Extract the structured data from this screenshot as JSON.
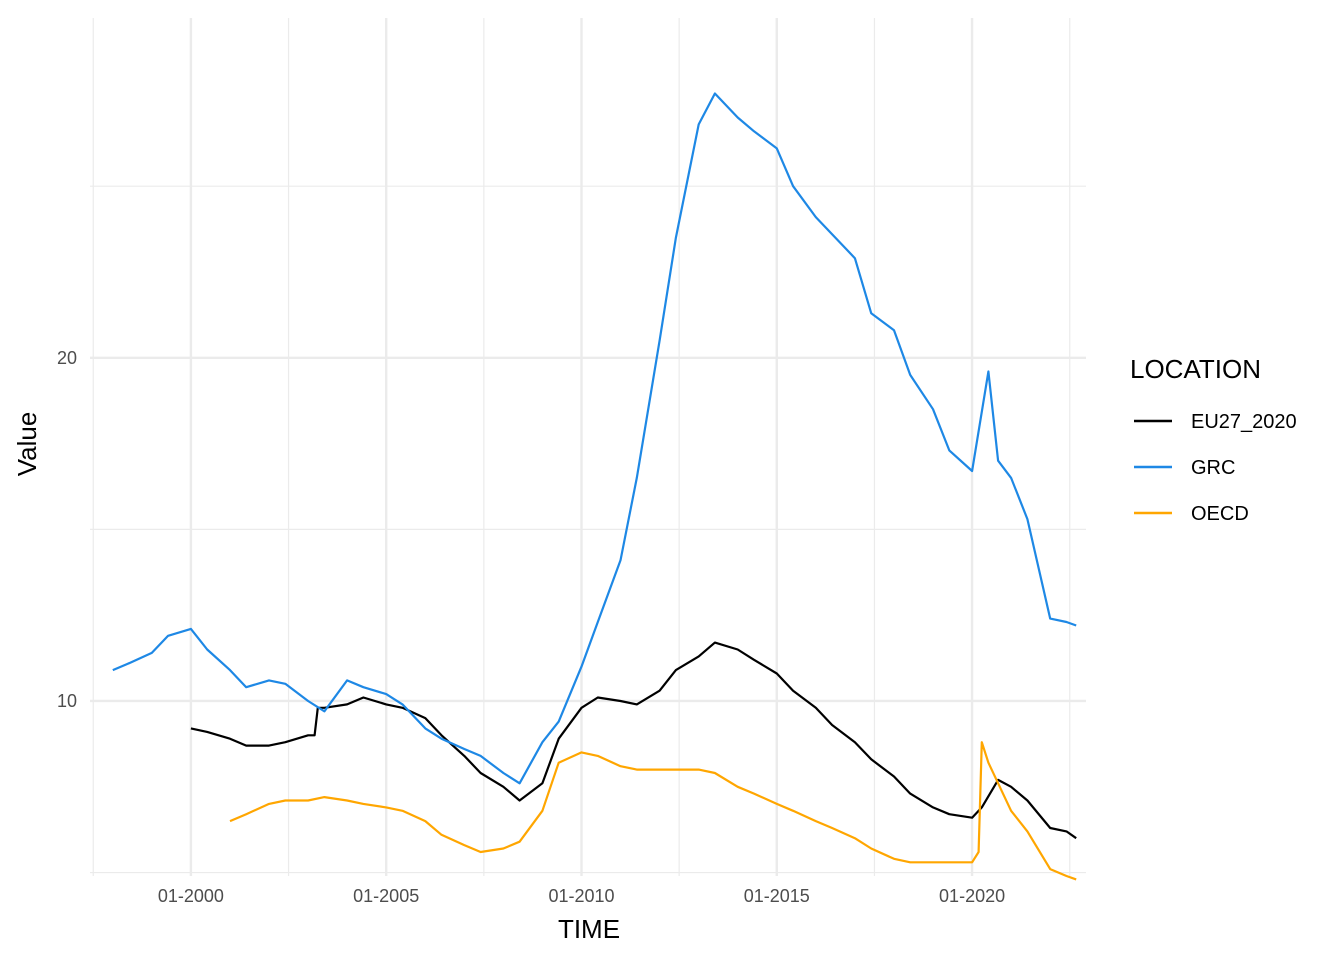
{
  "chart_data": {
    "type": "line",
    "title": "",
    "xlabel": "TIME",
    "ylabel": "Value",
    "xlim": [
      "1997-06",
      "2022-12"
    ],
    "ylim": [
      4.9,
      29.9
    ],
    "x_ticks": [
      "01-2000",
      "01-2005",
      "01-2010",
      "01-2015",
      "01-2020"
    ],
    "y_ticks": [
      10,
      20
    ],
    "grid": true,
    "legend": {
      "title": "LOCATION",
      "position": "right"
    },
    "series": [
      {
        "name": "EU27_2020",
        "color": "#000000",
        "points": [
          [
            "2000-01",
            9.2
          ],
          [
            "2000-06",
            9.1
          ],
          [
            "2001-01",
            8.9
          ],
          [
            "2001-06",
            8.7
          ],
          [
            "2002-01",
            8.7
          ],
          [
            "2002-06",
            8.8
          ],
          [
            "2003-01",
            9.0
          ],
          [
            "2003-03",
            9.0
          ],
          [
            "2003-04",
            9.8
          ],
          [
            "2003-06",
            9.8
          ],
          [
            "2004-01",
            9.9
          ],
          [
            "2004-06",
            10.1
          ],
          [
            "2005-01",
            9.9
          ],
          [
            "2005-06",
            9.8
          ],
          [
            "2006-01",
            9.5
          ],
          [
            "2006-06",
            9.0
          ],
          [
            "2007-01",
            8.4
          ],
          [
            "2007-06",
            7.9
          ],
          [
            "2008-01",
            7.5
          ],
          [
            "2008-06",
            7.1
          ],
          [
            "2009-01",
            7.6
          ],
          [
            "2009-06",
            8.9
          ],
          [
            "2010-01",
            9.8
          ],
          [
            "2010-06",
            10.1
          ],
          [
            "2011-01",
            10.0
          ],
          [
            "2011-06",
            9.9
          ],
          [
            "2012-01",
            10.3
          ],
          [
            "2012-06",
            10.9
          ],
          [
            "2013-01",
            11.3
          ],
          [
            "2013-06",
            11.7
          ],
          [
            "2014-01",
            11.5
          ],
          [
            "2014-06",
            11.2
          ],
          [
            "2015-01",
            10.8
          ],
          [
            "2015-06",
            10.3
          ],
          [
            "2016-01",
            9.8
          ],
          [
            "2016-06",
            9.3
          ],
          [
            "2017-01",
            8.8
          ],
          [
            "2017-06",
            8.3
          ],
          [
            "2018-01",
            7.8
          ],
          [
            "2018-06",
            7.3
          ],
          [
            "2019-01",
            6.9
          ],
          [
            "2019-06",
            6.7
          ],
          [
            "2020-01",
            6.6
          ],
          [
            "2020-04",
            6.9
          ],
          [
            "2020-09",
            7.7
          ],
          [
            "2021-01",
            7.5
          ],
          [
            "2021-06",
            7.1
          ],
          [
            "2022-01",
            6.3
          ],
          [
            "2022-06",
            6.2
          ],
          [
            "2022-09",
            6.0
          ]
        ]
      },
      {
        "name": "GRC",
        "color": "#1e88e5",
        "points": [
          [
            "1998-01",
            10.9
          ],
          [
            "1998-06",
            11.1
          ],
          [
            "1999-01",
            11.4
          ],
          [
            "1999-06",
            11.9
          ],
          [
            "2000-01",
            12.1
          ],
          [
            "2000-06",
            11.5
          ],
          [
            "2001-01",
            10.9
          ],
          [
            "2001-06",
            10.4
          ],
          [
            "2002-01",
            10.6
          ],
          [
            "2002-06",
            10.5
          ],
          [
            "2003-01",
            10.0
          ],
          [
            "2003-06",
            9.7
          ],
          [
            "2004-01",
            10.6
          ],
          [
            "2004-06",
            10.4
          ],
          [
            "2005-01",
            10.2
          ],
          [
            "2005-06",
            9.9
          ],
          [
            "2006-01",
            9.2
          ],
          [
            "2006-06",
            8.9
          ],
          [
            "2007-01",
            8.6
          ],
          [
            "2007-06",
            8.4
          ],
          [
            "2008-01",
            7.9
          ],
          [
            "2008-06",
            7.6
          ],
          [
            "2009-01",
            8.8
          ],
          [
            "2009-06",
            9.4
          ],
          [
            "2010-01",
            11.0
          ],
          [
            "2010-06",
            12.3
          ],
          [
            "2011-01",
            14.1
          ],
          [
            "2011-06",
            16.5
          ],
          [
            "2012-01",
            20.5
          ],
          [
            "2012-06",
            23.5
          ],
          [
            "2013-01",
            26.8
          ],
          [
            "2013-06",
            27.7
          ],
          [
            "2014-01",
            27.0
          ],
          [
            "2014-06",
            26.6
          ],
          [
            "2015-01",
            26.1
          ],
          [
            "2015-06",
            25.0
          ],
          [
            "2016-01",
            24.1
          ],
          [
            "2016-06",
            23.6
          ],
          [
            "2017-01",
            22.9
          ],
          [
            "2017-06",
            21.3
          ],
          [
            "2018-01",
            20.8
          ],
          [
            "2018-06",
            19.5
          ],
          [
            "2019-01",
            18.5
          ],
          [
            "2019-06",
            17.3
          ],
          [
            "2020-01",
            16.7
          ],
          [
            "2020-06",
            19.6
          ],
          [
            "2020-09",
            17.0
          ],
          [
            "2021-01",
            16.5
          ],
          [
            "2021-06",
            15.3
          ],
          [
            "2022-01",
            12.4
          ],
          [
            "2022-06",
            12.3
          ],
          [
            "2022-09",
            12.2
          ]
        ]
      },
      {
        "name": "OECD",
        "color": "#ffa600",
        "points": [
          [
            "2001-01",
            6.5
          ],
          [
            "2001-06",
            6.7
          ],
          [
            "2002-01",
            7.0
          ],
          [
            "2002-06",
            7.1
          ],
          [
            "2003-01",
            7.1
          ],
          [
            "2003-06",
            7.2
          ],
          [
            "2004-01",
            7.1
          ],
          [
            "2004-06",
            7.0
          ],
          [
            "2005-01",
            6.9
          ],
          [
            "2005-06",
            6.8
          ],
          [
            "2006-01",
            6.5
          ],
          [
            "2006-06",
            6.1
          ],
          [
            "2007-01",
            5.8
          ],
          [
            "2007-06",
            5.6
          ],
          [
            "2008-01",
            5.7
          ],
          [
            "2008-06",
            5.9
          ],
          [
            "2009-01",
            6.8
          ],
          [
            "2009-06",
            8.2
          ],
          [
            "2010-01",
            8.5
          ],
          [
            "2010-06",
            8.4
          ],
          [
            "2011-01",
            8.1
          ],
          [
            "2011-06",
            8.0
          ],
          [
            "2012-01",
            8.0
          ],
          [
            "2012-06",
            8.0
          ],
          [
            "2013-01",
            8.0
          ],
          [
            "2013-06",
            7.9
          ],
          [
            "2014-01",
            7.5
          ],
          [
            "2014-06",
            7.3
          ],
          [
            "2015-01",
            7.0
          ],
          [
            "2015-06",
            6.8
          ],
          [
            "2016-01",
            6.5
          ],
          [
            "2016-06",
            6.3
          ],
          [
            "2017-01",
            6.0
          ],
          [
            "2017-06",
            5.7
          ],
          [
            "2018-01",
            5.4
          ],
          [
            "2018-06",
            5.3
          ],
          [
            "2019-01",
            5.3
          ],
          [
            "2019-06",
            5.3
          ],
          [
            "2020-01",
            5.3
          ],
          [
            "2020-03",
            5.6
          ],
          [
            "2020-04",
            8.8
          ],
          [
            "2020-06",
            8.2
          ],
          [
            "2021-01",
            6.8
          ],
          [
            "2021-06",
            6.2
          ],
          [
            "2022-01",
            5.1
          ],
          [
            "2022-06",
            4.9
          ],
          [
            "2022-09",
            4.8
          ]
        ]
      }
    ]
  }
}
